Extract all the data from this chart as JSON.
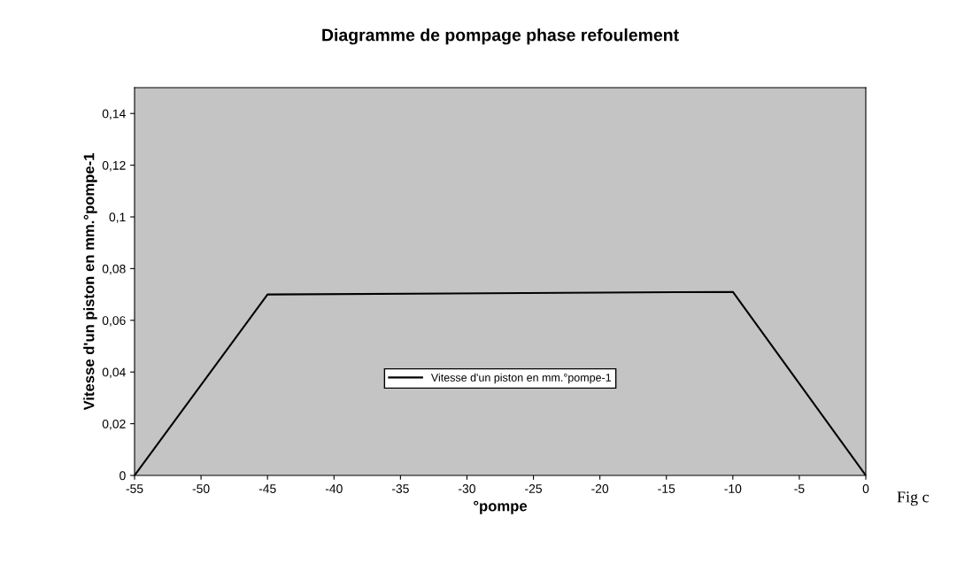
{
  "chart_data": {
    "type": "line",
    "title": "Diagramme de pompage phase refoulement",
    "xlabel": "°pompe",
    "ylabel": "Vitesse d'un piston en mm.°pompe-1",
    "series": [
      {
        "name": "Vitesse d'un piston en mm.°pompe-1",
        "color": "#000000",
        "x": [
          -55,
          -45,
          -10,
          0
        ],
        "values": [
          0,
          0.07,
          0.071,
          0
        ]
      }
    ],
    "xlim": [
      -55,
      0
    ],
    "xticks": [
      -55,
      -50,
      -45,
      -40,
      -35,
      -30,
      -25,
      -20,
      -15,
      -10,
      -5,
      0
    ],
    "ylim": [
      0,
      0.15
    ],
    "yticks": [
      0,
      {
        "value": 0.02,
        "label": "0,02"
      },
      {
        "value": 0.04,
        "label": "0,04"
      },
      {
        "value": 0.06,
        "label": "0,06"
      },
      {
        "value": 0.08,
        "label": "0,08"
      },
      {
        "value": 0.1,
        "label": "0,1"
      },
      {
        "value": 0.12,
        "label": "0,12"
      },
      {
        "value": 0.14,
        "label": "0,14"
      }
    ],
    "annotations": [
      "Fig c"
    ],
    "grid": false,
    "legend": "center",
    "marker": "none",
    "line_style": "solid"
  }
}
